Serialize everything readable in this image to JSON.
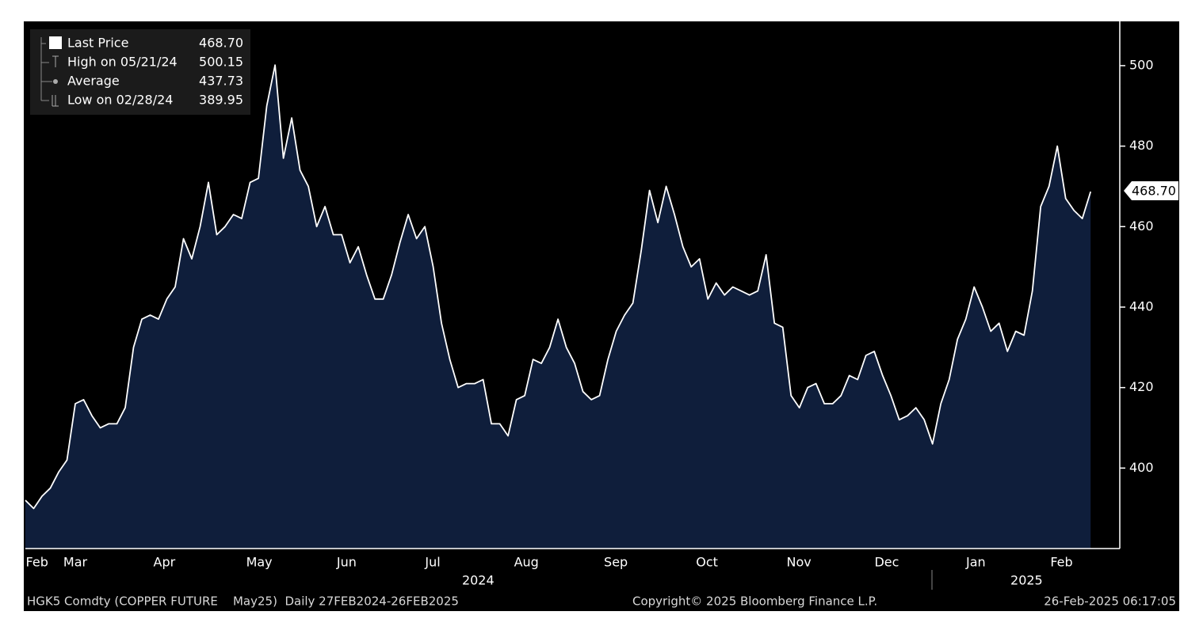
{
  "chart_data": {
    "type": "area",
    "legend": [
      {
        "name": "Last Price",
        "value": 468.7,
        "label": "468.70"
      },
      {
        "name": "High on 05/21/24",
        "value": 500.15
      },
      {
        "name": "Average",
        "value": 437.73
      },
      {
        "name": "Low on 02/28/24",
        "value": 389.95
      }
    ],
    "values": [
      392,
      389.95,
      393,
      395,
      399,
      402,
      416,
      417,
      413,
      410,
      411,
      411,
      415,
      430,
      437,
      438,
      437,
      442,
      445,
      457,
      452,
      460,
      471,
      458,
      460,
      463,
      462,
      471,
      472,
      490,
      500.15,
      477,
      487,
      474,
      470,
      460,
      465,
      458,
      458,
      451,
      455,
      448,
      442,
      442,
      448,
      456,
      463,
      457,
      460,
      450,
      436,
      427,
      420,
      421,
      421,
      422,
      411,
      411,
      408,
      417,
      418,
      427,
      426,
      430,
      437,
      430,
      426,
      419,
      417,
      418,
      427,
      434,
      438,
      441,
      454,
      469,
      461,
      470,
      463,
      455,
      450,
      452,
      442,
      446,
      443,
      445,
      444,
      443,
      444,
      453,
      436,
      435,
      418,
      415,
      420,
      421,
      416,
      416,
      418,
      423,
      422,
      428,
      429,
      423,
      418,
      412,
      413,
      415,
      412,
      406,
      416,
      422,
      432,
      437,
      445,
      440,
      434,
      436,
      429,
      434,
      433,
      444,
      465,
      470,
      480,
      467,
      464,
      462,
      468.7
    ],
    "line_color": "#ffffff",
    "area_color": "#0f1e3b",
    "xlim": [
      0,
      131.5
    ],
    "ylim": [
      380,
      511
    ],
    "yticks": [
      400,
      420,
      440,
      460,
      480,
      500
    ],
    "xticks": [
      {
        "value": 1.4,
        "label": "Feb"
      },
      {
        "value": 6.0,
        "label": "Mar"
      },
      {
        "value": 16.7,
        "label": "Apr"
      },
      {
        "value": 28.1,
        "label": "May"
      },
      {
        "value": 38.6,
        "label": "Jun"
      },
      {
        "value": 48.95,
        "label": "Jul"
      },
      {
        "value": 60.2,
        "label": "Aug"
      },
      {
        "value": 70.95,
        "label": "Sep"
      },
      {
        "value": 81.9,
        "label": "Oct"
      },
      {
        "value": 92.95,
        "label": "Nov"
      },
      {
        "value": 103.5,
        "label": "Dec"
      },
      {
        "value": 114.2,
        "label": "Jan"
      },
      {
        "value": 124.5,
        "label": "Feb"
      }
    ],
    "xyears": [
      {
        "value": 54.4,
        "label": "2024"
      },
      {
        "value": 120.3,
        "label": "2025"
      }
    ],
    "footer": {
      "security": "HGK5 Comdty (COPPER FUTURE    May25)  Daily 27FEB2024-26FEB2025",
      "copyright": "Copyright© 2025 Bloomberg Finance L.P.",
      "timestamp": "26-Feb-2025 06:17:05"
    }
  }
}
